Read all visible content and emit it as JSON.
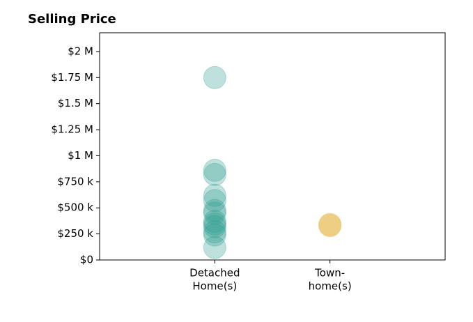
{
  "chart_data": {
    "type": "strip",
    "title": "Selling Price",
    "categories": [
      [
        "Detached",
        "Home(s)"
      ],
      [
        "Town-",
        "home(s)"
      ]
    ],
    "colors": [
      "#2a9d8f",
      "#e9c46a"
    ],
    "values": [
      [
        1750000,
        860000,
        820000,
        620000,
        570000,
        475000,
        450000,
        370000,
        345000,
        320000,
        270000,
        240000,
        120000
      ],
      [
        330000,
        340000
      ]
    ],
    "ylim": [
      0,
      2180000
    ],
    "yticks": [
      {
        "value": 0,
        "label": "$0"
      },
      {
        "value": 250000,
        "label": "$250 k"
      },
      {
        "value": 500000,
        "label": "$500 k"
      },
      {
        "value": 750000,
        "label": "$750 k"
      },
      {
        "value": 1000000,
        "label": "$1 M"
      },
      {
        "value": 1250000,
        "label": "$1.25 M"
      },
      {
        "value": 1500000,
        "label": "$1.5 M"
      },
      {
        "value": 1750000,
        "label": "$1.75 M"
      },
      {
        "value": 2000000,
        "label": "$2 M"
      }
    ]
  }
}
